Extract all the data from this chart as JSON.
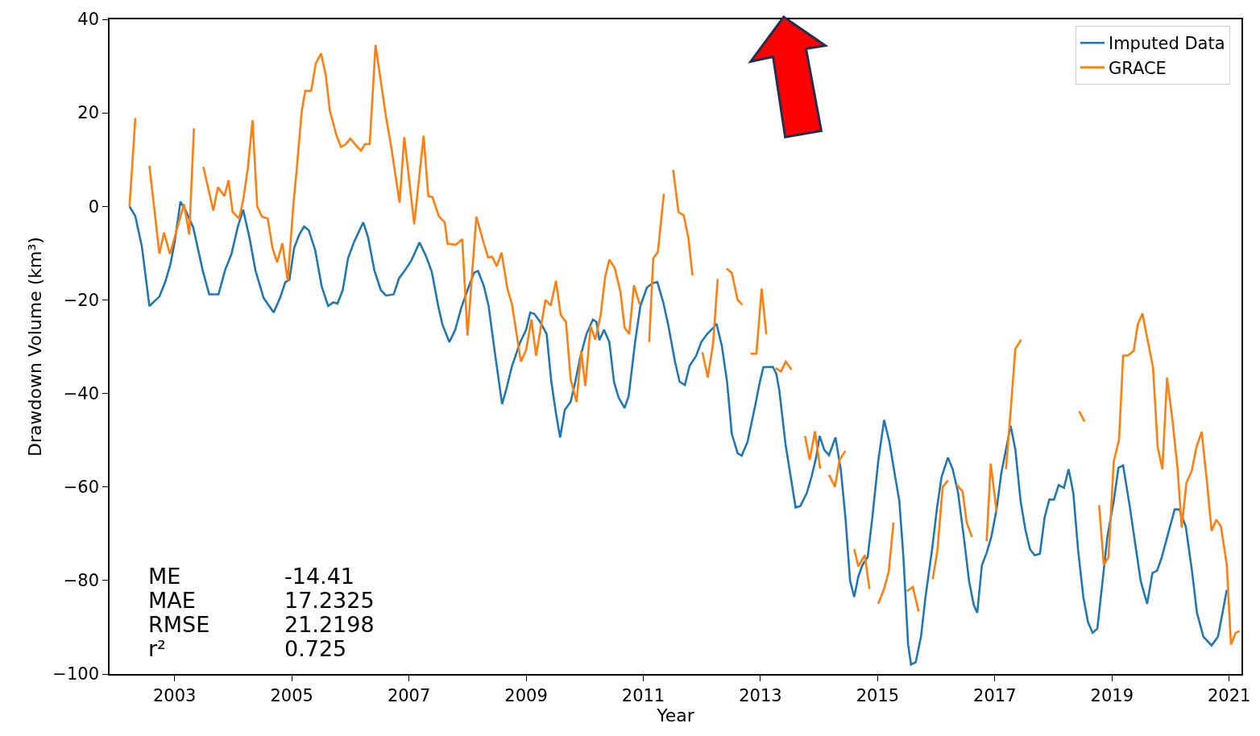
{
  "chart_data": {
    "type": "line",
    "xlabel": "Year",
    "ylabel": "Drawdown Volume (km³)",
    "xlim": [
      2001.89,
      2021.21
    ],
    "xticks": [
      2003,
      2005,
      2007,
      2009,
      2011,
      2013,
      2015,
      2017,
      2019,
      2021
    ],
    "ylim": [
      -100,
      40
    ],
    "yticks": [
      {
        "value": -100,
        "label": "−100"
      },
      {
        "value": -80,
        "label": "−80"
      },
      {
        "value": -60,
        "label": "−60"
      },
      {
        "value": -40,
        "label": "−40"
      },
      {
        "value": -20,
        "label": "−20"
      },
      0,
      20,
      40
    ],
    "legend": "top right",
    "marker": "none",
    "line_style": "solid",
    "annotations": [
      "ME",
      "-14.41",
      "MAE",
      "17.2325",
      "RMSE",
      "21.2198",
      "r²",
      "0.725"
    ],
    "series": [
      {
        "name": "Imputed Data",
        "color": "#1f77b4",
        "x": [
          2002.23,
          2002.33,
          2002.44,
          2002.57,
          2002.74,
          2002.84,
          2002.93,
          2003.0,
          2003.1,
          2003.19,
          2003.32,
          2003.48,
          2003.59,
          2003.75,
          2003.86,
          2003.97,
          2004.08,
          2004.17,
          2004.28,
          2004.38,
          2004.52,
          2004.69,
          2004.8,
          2004.89,
          2004.96,
          2005.04,
          2005.13,
          2005.21,
          2005.29,
          2005.4,
          2005.51,
          2005.62,
          2005.71,
          2005.78,
          2005.87,
          2005.96,
          2006.06,
          2006.22,
          2006.3,
          2006.41,
          2006.52,
          2006.61,
          2006.74,
          2006.83,
          2006.93,
          2007.04,
          2007.18,
          2007.29,
          2007.39,
          2007.5,
          2007.57,
          2007.69,
          2007.79,
          2007.89,
          2008.0,
          2008.11,
          2008.18,
          2008.28,
          2008.36,
          2008.46,
          2008.59,
          2008.66,
          2008.76,
          2008.9,
          2009.0,
          2009.07,
          2009.14,
          2009.24,
          2009.35,
          2009.43,
          2009.51,
          2009.58,
          2009.66,
          2009.76,
          2009.84,
          2009.92,
          2010.03,
          2010.14,
          2010.2,
          2010.25,
          2010.33,
          2010.42,
          2010.5,
          2010.58,
          2010.68,
          2010.75,
          2010.86,
          2010.95,
          2011.06,
          2011.16,
          2011.24,
          2011.34,
          2011.43,
          2011.54,
          2011.62,
          2011.71,
          2011.79,
          2011.9,
          2011.99,
          2012.09,
          2012.2,
          2012.25,
          2012.34,
          2012.43,
          2012.51,
          2012.61,
          2012.68,
          2012.78,
          2012.91,
          2012.99,
          2013.05,
          2013.21,
          2013.27,
          2013.32,
          2013.43,
          2013.6,
          2013.68,
          2013.79,
          2013.87,
          2013.95,
          2014.01,
          2014.09,
          2014.17,
          2014.28,
          2014.37,
          2014.45,
          2014.53,
          2014.6,
          2014.67,
          2014.74,
          2014.83,
          2014.91,
          2015.01,
          2015.11,
          2015.2,
          2015.3,
          2015.37,
          2015.44,
          2015.52,
          2015.57,
          2015.65,
          2015.74,
          2015.82,
          2015.93,
          2016.01,
          2016.09,
          2016.2,
          2016.28,
          2016.37,
          2016.48,
          2016.56,
          2016.64,
          2016.7,
          2016.78,
          2016.86,
          2016.94,
          2017.03,
          2017.11,
          2017.19,
          2017.27,
          2017.35,
          2017.44,
          2017.52,
          2017.6,
          2017.68,
          2017.77,
          2017.85,
          2017.93,
          2018.01,
          2018.09,
          2018.18,
          2018.26,
          2018.34,
          2018.42,
          2018.51,
          2018.59,
          2018.67,
          2018.75,
          2018.84,
          2018.92,
          2019.03,
          2019.11,
          2019.19,
          2019.3,
          2019.41,
          2019.49,
          2019.6,
          2019.69,
          2019.77,
          2019.85,
          2019.96,
          2020.07,
          2020.15,
          2020.26,
          2020.37,
          2020.45,
          2020.56,
          2020.7,
          2020.81,
          2020.96
        ],
        "values": [
          0,
          -2.1,
          -8.5,
          -21.3,
          -19.3,
          -16.2,
          -12.3,
          -7.7,
          1.0,
          -0.9,
          -4.6,
          -13.7,
          -18.8,
          -18.8,
          -13.7,
          -10.2,
          -4.3,
          -0.7,
          -6.8,
          -13.7,
          -19.6,
          -22.7,
          -19.6,
          -16.2,
          -15.7,
          -8.9,
          -6.0,
          -4.3,
          -5.1,
          -9.4,
          -17.1,
          -21.3,
          -20.5,
          -20.8,
          -17.9,
          -11.1,
          -7.7,
          -3.4,
          -6.5,
          -13.7,
          -17.9,
          -19.1,
          -18.8,
          -15.4,
          -13.7,
          -11.6,
          -7.7,
          -10.6,
          -14.0,
          -21.3,
          -25.2,
          -29.0,
          -26.4,
          -21.8,
          -17.9,
          -14.2,
          -13.8,
          -17.1,
          -21.3,
          -30.7,
          -42.3,
          -39.2,
          -34.1,
          -29.0,
          -26.4,
          -22.7,
          -23.0,
          -24.7,
          -27.3,
          -37.5,
          -44.3,
          -49.4,
          -43.5,
          -41.8,
          -37.5,
          -32.4,
          -27.3,
          -24.2,
          -24.7,
          -28.6,
          -26.4,
          -29.0,
          -37.5,
          -40.9,
          -43.1,
          -40.6,
          -29.0,
          -21.3,
          -17.4,
          -16.4,
          -16.2,
          -20.5,
          -25.6,
          -33.2,
          -37.5,
          -38.2,
          -34.1,
          -32.0,
          -29.0,
          -27.3,
          -25.9,
          -25.1,
          -29.8,
          -37.5,
          -48.6,
          -52.8,
          -53.3,
          -50.3,
          -42.6,
          -37.5,
          -34.4,
          -34.3,
          -35.8,
          -39.2,
          -51.1,
          -64.4,
          -64.1,
          -61.3,
          -57.9,
          -53.7,
          -49.1,
          -52.1,
          -53.2,
          -49.4,
          -56.2,
          -66.5,
          -80.1,
          -83.5,
          -79.2,
          -76.7,
          -75.0,
          -66.5,
          -54.5,
          -45.7,
          -50.3,
          -57.9,
          -63.0,
          -75.0,
          -93.7,
          -98.0,
          -97.5,
          -92.0,
          -83.2,
          -73.3,
          -64.8,
          -57.9,
          -53.7,
          -56.2,
          -61.0,
          -71.6,
          -80.1,
          -85.2,
          -86.9,
          -76.7,
          -74.1,
          -70.7,
          -64.8,
          -57.1,
          -52.0,
          -46.9,
          -52.0,
          -63.0,
          -69.0,
          -73.3,
          -74.6,
          -74.3,
          -66.5,
          -62.7,
          -62.7,
          -59.6,
          -60.2,
          -56.2,
          -61.3,
          -73.3,
          -83.5,
          -88.9,
          -91.2,
          -90.3,
          -80.1,
          -70.7,
          -63.0,
          -55.9,
          -55.4,
          -63.9,
          -73.3,
          -80.1,
          -85.0,
          -78.4,
          -77.9,
          -75.0,
          -69.9,
          -64.8,
          -64.8,
          -68.5,
          -78.4,
          -86.9,
          -92.0,
          -93.9,
          -92.0,
          -82.0
        ]
      },
      {
        "name": "GRACE",
        "color": "#ff7f0e",
        "x": [
          2002.23,
          2002.33,
          2002.45,
          2002.57,
          2002.74,
          2002.82,
          2002.92,
          2003.16,
          2003.25,
          2003.33,
          2003.41,
          2003.49,
          2003.66,
          2003.74,
          2003.85,
          2003.92,
          2003.99,
          2004.1,
          2004.17,
          2004.25,
          2004.33,
          2004.41,
          2004.49,
          2004.59,
          2004.67,
          2004.75,
          2004.84,
          2004.93,
          2005.03,
          2005.08,
          2005.17,
          2005.23,
          2005.33,
          2005.41,
          2005.5,
          2005.58,
          2005.65,
          2005.76,
          2005.84,
          2005.92,
          2006.0,
          2006.08,
          2006.18,
          2006.25,
          2006.33,
          2006.43,
          2006.61,
          2006.69,
          2006.84,
          2006.92,
          2007.09,
          2007.25,
          2007.33,
          2007.4,
          2007.51,
          2007.61,
          2007.66,
          2007.8,
          2007.91,
          2008.0,
          2008.15,
          2008.28,
          2008.35,
          2008.42,
          2008.5,
          2008.58,
          2008.68,
          2008.76,
          2008.91,
          2009.0,
          2009.09,
          2009.17,
          2009.33,
          2009.42,
          2009.51,
          2009.59,
          2009.68,
          2009.76,
          2009.86,
          2009.94,
          2010.01,
          2010.1,
          2010.18,
          2010.27,
          2010.35,
          2010.42,
          2010.51,
          2010.61,
          2010.68,
          2010.76,
          2010.84,
          2010.94,
          2011.02,
          2011.1,
          2011.17,
          2011.25,
          2011.35,
          2011.43,
          2011.51,
          2011.6,
          2011.69,
          2011.77,
          2011.84,
          2011.92,
          2012.01,
          2012.1,
          2012.19,
          2012.27,
          2012.35,
          2012.42,
          2012.51,
          2012.61,
          2012.69,
          2012.76,
          2012.83,
          2012.93,
          2013.02,
          2013.1,
          2013.18,
          2013.26,
          2013.35,
          2013.43,
          2013.53,
          2013.65,
          2013.76,
          2013.84,
          2013.93,
          2014.02,
          2014.1,
          2014.17,
          2014.27,
          2014.35,
          2014.45,
          2014.52,
          2014.6,
          2014.67,
          2014.78,
          2014.86,
          2014.94,
          2015.01,
          2015.11,
          2015.19,
          2015.27,
          2015.38,
          2015.5,
          2015.6,
          2015.7,
          2015.82,
          2015.94,
          2016.02,
          2016.11,
          2016.2,
          2016.28,
          2016.35,
          2016.45,
          2016.52,
          2016.61,
          2016.74,
          2016.86,
          2016.93,
          2017.03,
          2017.11,
          2017.19,
          2017.27,
          2017.35,
          2017.45,
          2017.95,
          2018.44,
          2018.53,
          2018.65,
          2018.78,
          2018.86,
          2018.94,
          2019.03,
          2019.12,
          2019.19,
          2019.27,
          2019.37,
          2019.44,
          2019.52,
          2019.6,
          2019.7,
          2019.78,
          2019.86,
          2019.94,
          2020.03,
          2020.12,
          2020.19,
          2020.27,
          2020.36,
          2020.44,
          2020.53,
          2020.62,
          2020.7,
          2020.78,
          2020.86,
          2020.96,
          2021.03,
          2021.11,
          2021.18
        ],
        "values": [
          0,
          18.9,
          null,
          8.7,
          -10.1,
          -5.6,
          -10.2,
          0.5,
          -6.0,
          16.7,
          null,
          8.5,
          -0.9,
          4.1,
          2.2,
          5.6,
          -1.2,
          -2.6,
          1.3,
          8.1,
          18.4,
          0,
          -2.2,
          -2.6,
          -8.9,
          -12.0,
          -7.9,
          -15.9,
          0.8,
          7.3,
          20.4,
          24.7,
          24.7,
          30.6,
          32.7,
          28.1,
          20.4,
          15.3,
          12.7,
          13.3,
          14.5,
          13.3,
          11.9,
          13.3,
          13.3,
          34.5,
          19.0,
          13.3,
          0.8,
          14.8,
          -3.8,
          15.1,
          2.2,
          2.0,
          -2.1,
          -3.4,
          -8.0,
          -8.2,
          -7.0,
          -27.6,
          -2.2,
          -8.0,
          -10.9,
          -10.8,
          -12.8,
          -9.9,
          -17.6,
          -21.0,
          -33.2,
          -30.7,
          -24.2,
          -31.9,
          -20.0,
          -21.2,
          -15.9,
          -23.2,
          -24.7,
          -37.0,
          -41.8,
          -31.0,
          -38.4,
          -25.6,
          -28.5,
          -23.4,
          -15.0,
          -11.4,
          -13.1,
          -18.3,
          -25.9,
          -27.3,
          -16.9,
          -21.0,
          null,
          -29.0,
          -11.1,
          -9.7,
          2.7,
          null,
          7.8,
          -1.2,
          -1.9,
          -6.8,
          -14.8,
          null,
          -31.2,
          -36.6,
          -29.5,
          -15.5,
          null,
          -13.3,
          -14.2,
          -20.0,
          -21.0,
          null,
          -31.5,
          -31.5,
          -17.6,
          -27.3,
          null,
          -34.6,
          -35.3,
          -33.2,
          -34.9,
          null,
          -49.1,
          -54.2,
          -48.1,
          -56.1,
          null,
          -57.4,
          -60.0,
          -54.2,
          -52.3,
          null,
          -73.3,
          -77.0,
          -74.6,
          -81.8,
          null,
          -85.0,
          -81.8,
          -78.0,
          -67.6,
          null,
          -82.3,
          -81.4,
          -86.6,
          null,
          -79.7,
          -73.6,
          -60.0,
          -58.6,
          null,
          -59.5,
          -61.0,
          -67.6,
          -70.7,
          null,
          -71.6,
          -55.0,
          -65.3,
          null,
          -56.2,
          -43.8,
          -30.5,
          -28.5,
          null,
          -43.8,
          -46.0,
          null,
          -63.9,
          -76.7,
          -75.0,
          -54.5,
          -49.9,
          -31.9,
          -31.9,
          -30.9,
          -25.2,
          -22.9,
          -28.1,
          -34.4,
          -51.5,
          -56.2,
          -36.6,
          -45.5,
          -56.2,
          -68.7,
          -59.1,
          -56.6,
          -51.6,
          -48.2,
          -58.8,
          -69.4,
          -67.0,
          -68.5,
          -76.7,
          -93.7,
          -91.2,
          -90.8
        ]
      }
    ]
  }
}
